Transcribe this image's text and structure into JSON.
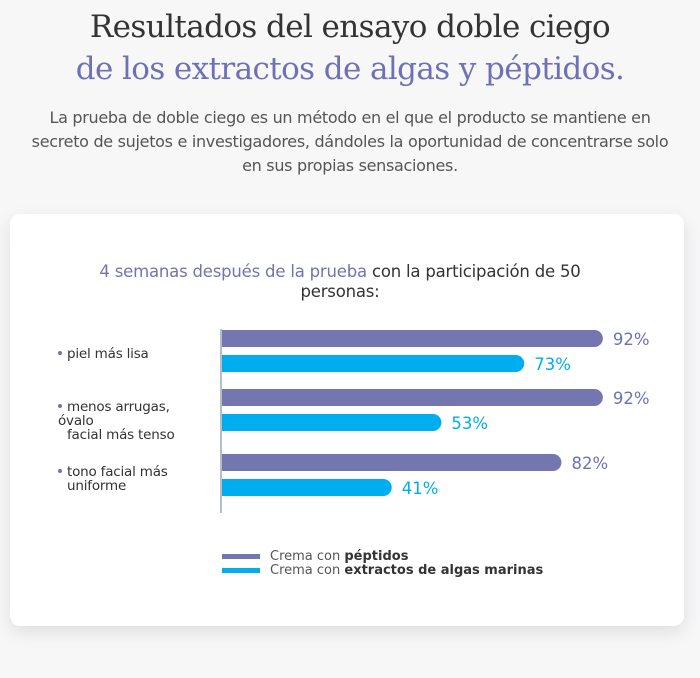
{
  "header": {
    "title_line1": "Resultados del ensayo doble ciego",
    "title_line2": "de los extractos de algas y péptidos.",
    "intro": "La prueba de doble ciego es un método en el que el producto se mantiene en secreto de sujetos e investigadores, dándoles la oportunidad de concentrarse solo en sus propias sensaciones."
  },
  "colors": {
    "peptides": "#7477af",
    "algae": "#00adee",
    "accent": "#6e72b4"
  },
  "chart_data": {
    "type": "bar",
    "orientation": "horizontal",
    "title_highlight": "4 semanas después de la prueba",
    "title_rest": " con la participación de 50",
    "title_line2": "personas:",
    "categories": [
      {
        "line1": "piel más lisa",
        "line2": ""
      },
      {
        "line1": "menos arrugas, óvalo",
        "line2": "facial más tenso"
      },
      {
        "line1": "tono facial más",
        "line2": "uniforme"
      }
    ],
    "series": [
      {
        "name": "Crema con péptidos",
        "name_prefix": "Crema con ",
        "name_bold": "péptidos",
        "values": [
          92,
          92,
          82
        ],
        "labels": [
          "92%",
          "92%",
          "82%"
        ]
      },
      {
        "name": "Crema con extractos de algas marinas",
        "name_prefix": "Crema con ",
        "name_bold": "extractos de algas marinas",
        "values": [
          73,
          53,
          41
        ],
        "labels": [
          "73%",
          "53%",
          "41%"
        ]
      }
    ],
    "unit": "%",
    "xlim": [
      0,
      100
    ],
    "grid": false,
    "legend_position": "bottom"
  }
}
